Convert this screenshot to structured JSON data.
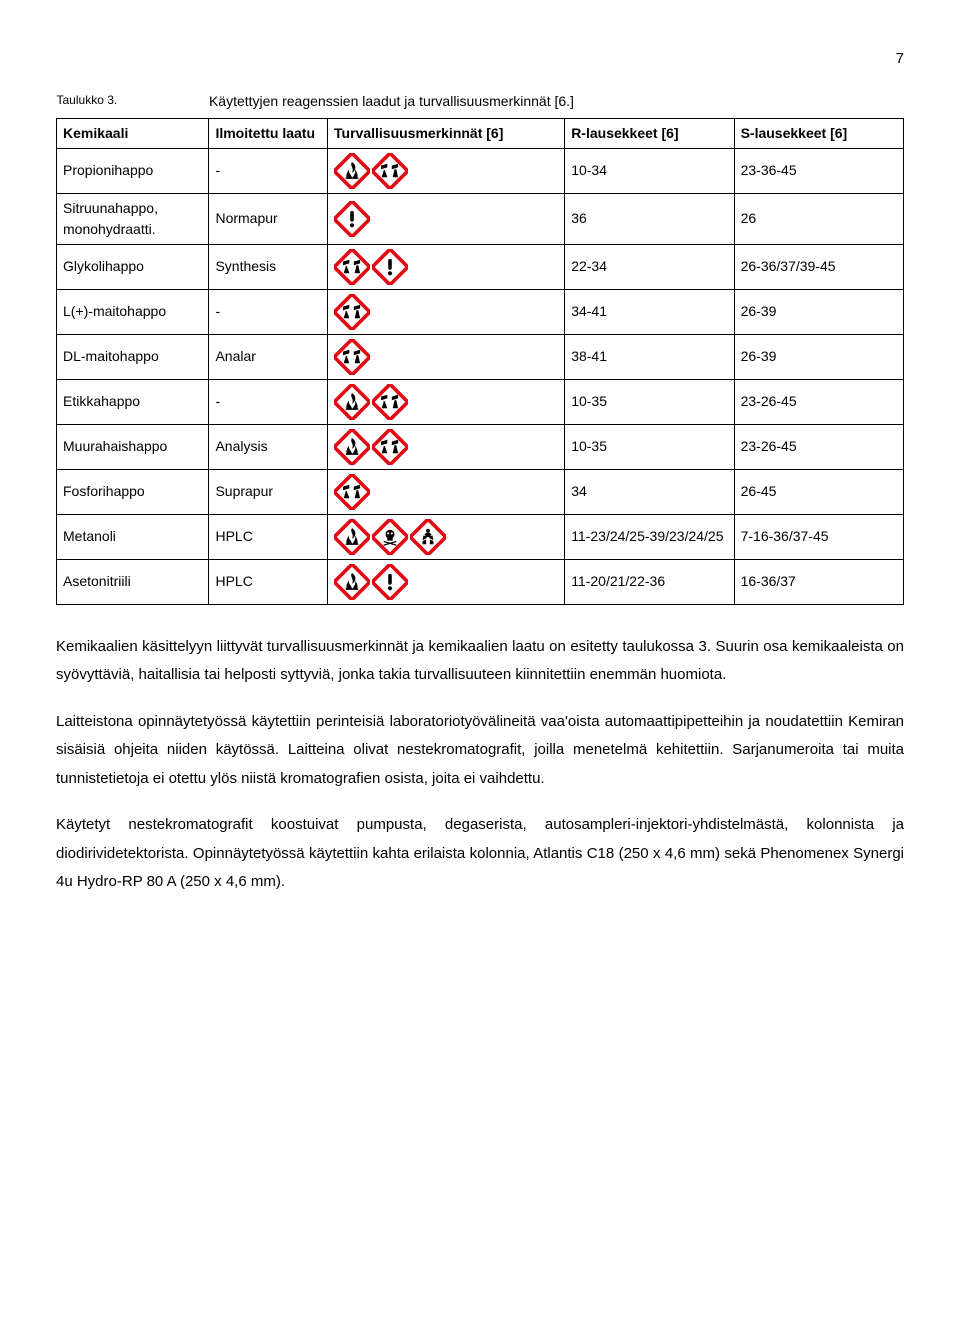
{
  "page_number": "7",
  "caption_label": "Taulukko 3.",
  "caption_text": "Käytettyjen reagenssien laadut ja turvallisuusmerkinnät [6.]",
  "headers": {
    "chemical": "Kemikaali",
    "grade": "Ilmoitettu laatu",
    "pictograms": "Turvallisuusmerkinnät [6]",
    "r_phrases": "R-lausekkeet [6]",
    "s_phrases": "S-lausekkeet [6]"
  },
  "pictogram_colors": {
    "border": "#e30613",
    "fill": "#ffffff",
    "ink": "#000000"
  },
  "rows": [
    {
      "chemical": "Propionihappo",
      "grade": "-",
      "pictos": [
        "flame",
        "corrosion"
      ],
      "r": "10-34",
      "s": "23-36-45"
    },
    {
      "chemical": "Sitruunahappo, monohydraatti.",
      "grade": "Normapur",
      "pictos": [
        "exclaim"
      ],
      "r": "36",
      "s": "26"
    },
    {
      "chemical": "Glykolihappo",
      "grade": "Synthesis",
      "pictos": [
        "corrosion",
        "exclaim"
      ],
      "r": "22-34",
      "s": "26-36/37/39-45"
    },
    {
      "chemical": "L(+)-maitohappo",
      "grade": "-",
      "pictos": [
        "corrosion"
      ],
      "r": "34-41",
      "s": "26-39"
    },
    {
      "chemical": "DL-maitohappo",
      "grade": "Analar",
      "pictos": [
        "corrosion"
      ],
      "r": "38-41",
      "s": "26-39"
    },
    {
      "chemical": "Etikkahappo",
      "grade": "-",
      "pictos": [
        "flame",
        "corrosion"
      ],
      "r": "10-35",
      "s": "23-26-45"
    },
    {
      "chemical": "Muurahaishappo",
      "grade": "Analysis",
      "pictos": [
        "flame",
        "corrosion"
      ],
      "r": "10-35",
      "s": "23-26-45"
    },
    {
      "chemical": "Fosforihappo",
      "grade": "Suprapur",
      "pictos": [
        "corrosion"
      ],
      "r": "34",
      "s": "26-45"
    },
    {
      "chemical": "Metanoli",
      "grade": "HPLC",
      "pictos": [
        "flame",
        "skull",
        "health"
      ],
      "r": "11-23/24/25-39/23/24/25",
      "s": "7-16-36/37-45"
    },
    {
      "chemical": "Asetonitriili",
      "grade": "HPLC",
      "pictos": [
        "flame",
        "exclaim"
      ],
      "r": "11-20/21/22-36",
      "s": "16-36/37"
    }
  ],
  "paragraphs": [
    "Kemikaalien käsittelyyn liittyvät turvallisuusmerkinnät ja kemikaalien laatu on esitetty taulukossa 3. Suurin osa kemikaaleista on syövyttäviä, haitallisia tai helposti syttyviä, jonka takia turvallisuuteen kiinnitettiin enemmän huomiota.",
    "Laitteistona opinnäytetyössä käytettiin perinteisiä laboratoriotyövälineitä vaa'oista automaattipipetteihin ja noudatettiin Kemiran sisäisiä ohjeita niiden käytössä. Laitteina olivat nestekromatografit, joilla menetelmä kehitettiin. Sarjanumeroita tai muita tunnistetietoja ei otettu ylös niistä kromatografien osista, joita ei vaihdettu.",
    "Käytetyt nestekromatografit koostuivat  pumpusta, degaserista, autosampleri-injektori-yhdistelmästä, kolonnista ja diodirividetektorista. Opinnäytetyössä käytettiin kahta erilaista kolonnia, Atlantis C18 (250 x 4,6 mm) sekä Phenomenex Synergi 4u Hydro-RP 80 A (250 x 4,6 mm)."
  ]
}
